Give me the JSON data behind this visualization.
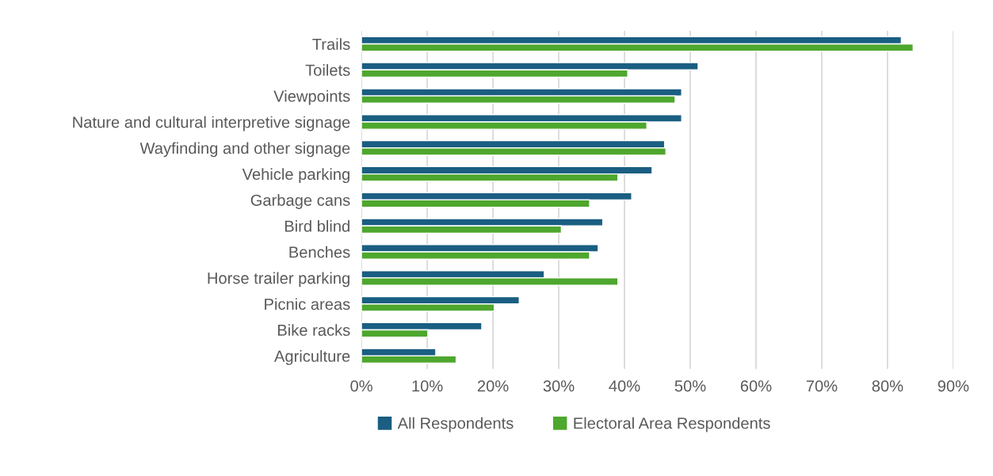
{
  "chart_data": {
    "type": "bar",
    "orientation": "horizontal",
    "categories": [
      "Trails",
      "Toilets",
      "Viewpoints",
      "Nature and cultural interpretive signage",
      "Wayfinding and other signage",
      "Vehicle parking",
      "Garbage cans",
      "Bird blind",
      "Benches",
      "Horse trailer parking",
      "Picnic areas",
      "Bike racks",
      "Agriculture"
    ],
    "series": [
      {
        "name": "All Respondents",
        "color": "#1a5e82",
        "values": [
          82.1,
          51.2,
          48.7,
          48.7,
          46.1,
          44.2,
          41.1,
          36.7,
          36.0,
          27.8,
          24.0,
          18.3,
          11.3
        ]
      },
      {
        "name": "Electoral Area Respondents",
        "color": "#4ea72e",
        "values": [
          83.9,
          40.5,
          47.7,
          43.4,
          46.3,
          39.0,
          34.7,
          30.4,
          34.7,
          39.0,
          20.2,
          10.1,
          14.4
        ]
      }
    ],
    "xlim": [
      0,
      90
    ],
    "xticks": [
      {
        "value": 0,
        "label": "0%"
      },
      {
        "value": 10,
        "label": "10%"
      },
      {
        "value": 20,
        "label": "20%"
      },
      {
        "value": 30,
        "label": "30%"
      },
      {
        "value": 40,
        "label": "40%"
      },
      {
        "value": 50,
        "label": "50%"
      },
      {
        "value": 60,
        "label": "60%"
      },
      {
        "value": 70,
        "label": "70%"
      },
      {
        "value": 80,
        "label": "80%"
      },
      {
        "value": 90,
        "label": "90%"
      }
    ],
    "grid": "x",
    "legend": "bottom"
  }
}
